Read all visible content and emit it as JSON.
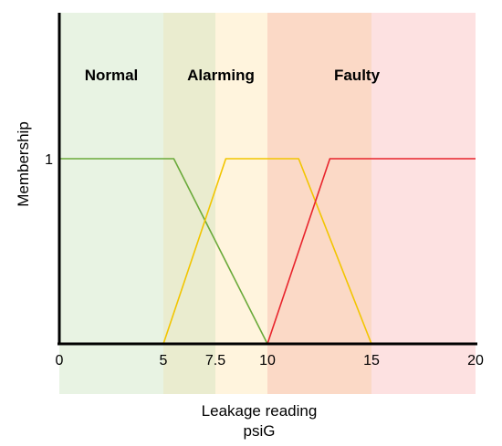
{
  "chart_data": {
    "type": "line",
    "title": "",
    "xlabel_line1": "Leakage reading",
    "xlabel_line2": "psiG",
    "ylabel": "Membership",
    "xlim": [
      0,
      20
    ],
    "ylim": [
      0,
      1
    ],
    "x_ticks": [
      0,
      5,
      7.5,
      10,
      15,
      20
    ],
    "x_tick_labels": [
      "0",
      "5",
      "7.5",
      "10",
      "15",
      "20"
    ],
    "y_ticks": [
      1
    ],
    "y_tick_labels": [
      "1"
    ],
    "grid": false,
    "background_bands": [
      {
        "x0": 0,
        "x1": 5,
        "color": "#e8f3e3"
      },
      {
        "x0": 5,
        "x1": 7.5,
        "color": "#eaeccf"
      },
      {
        "x0": 7.5,
        "x1": 10,
        "color": "#fff4dd"
      },
      {
        "x0": 10,
        "x1": 15,
        "color": "#fbd9c6"
      },
      {
        "x0": 15,
        "x1": 20,
        "color": "#fde1e1"
      }
    ],
    "region_labels": [
      {
        "text": "Normal",
        "color": "#22a84a"
      },
      {
        "text": "Alarming",
        "color": "#f5b800"
      },
      {
        "text": "Faulty",
        "color": "#22a84a"
      }
    ],
    "series": [
      {
        "color": "#6aaa3a",
        "x": [
          0,
          5.5,
          10
        ],
        "y": [
          1,
          1,
          0
        ]
      },
      {
        "color": "#f2c500",
        "x": [
          5,
          8,
          11.5,
          15
        ],
        "y": [
          0,
          1,
          1,
          0
        ]
      },
      {
        "color": "#e8242c",
        "x": [
          10,
          13,
          20
        ],
        "y": [
          0,
          1,
          1
        ]
      }
    ]
  }
}
